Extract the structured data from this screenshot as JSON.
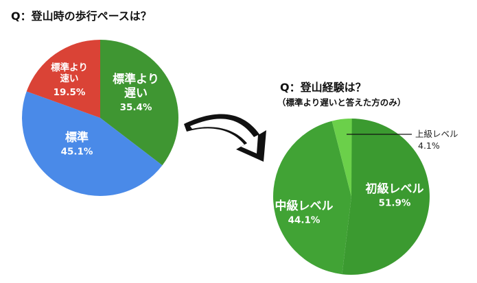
{
  "titles": {
    "chart1": "Q：登山時の歩行ペースは？",
    "chart2": "Q：登山経験は？",
    "chart2_note": "（標準より遅いと答えた方のみ）"
  },
  "colors": {
    "green": "#3f9632",
    "blue": "#4a8ae8",
    "red": "#da4336",
    "green_mid": "#41a335",
    "green_dark": "#3b9a30",
    "green_light": "#6bd04a",
    "arrow": "#111111"
  },
  "chart_data": [
    {
      "type": "pie",
      "title": "Q：登山時の歩行ペースは？",
      "slices": [
        {
          "label": [
            "標準より",
            "遅い"
          ],
          "value": 35.4,
          "value_text": "35.4%",
          "color": "#3f9632"
        },
        {
          "label": [
            "標準"
          ],
          "value": 45.1,
          "value_text": "45.1%",
          "color": "#4a8ae8"
        },
        {
          "label": [
            "標準より",
            "速い"
          ],
          "value": 19.5,
          "value_text": "19.5%",
          "color": "#da4336"
        }
      ]
    },
    {
      "type": "pie",
      "title": "Q：登山経験は？",
      "subtitle": "（標準より遅いと答えた方のみ）",
      "slices": [
        {
          "label": [
            "初級レベル"
          ],
          "value": 51.9,
          "value_text": "51.9%",
          "color": "#3b9a30"
        },
        {
          "label": [
            "中級レベル"
          ],
          "value": 44.1,
          "value_text": "44.1%",
          "color": "#41a335"
        },
        {
          "label": [
            "上級レベル"
          ],
          "value": 4.1,
          "value_text": "4.1%",
          "color": "#6bd04a"
        }
      ]
    }
  ]
}
